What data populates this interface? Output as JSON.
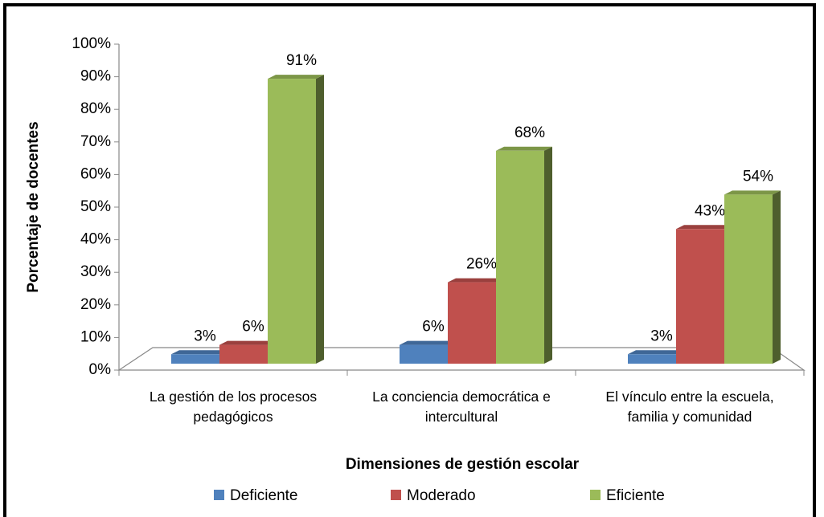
{
  "chart_data": {
    "type": "bar3d",
    "categories": [
      "La gestión de los procesos pedagógicos",
      "La conciencia democrática e intercultural",
      "El vínculo entre la escuela, familia y comunidad"
    ],
    "series": [
      {
        "name": "Deficiente",
        "color": "#4f81bd",
        "values": [
          3,
          6,
          3
        ],
        "value_labels": [
          "3%",
          "6%",
          "3%"
        ]
      },
      {
        "name": "Moderado",
        "color": "#c0504d",
        "values": [
          6,
          26,
          43
        ],
        "value_labels": [
          "6%",
          "26%",
          "43%"
        ]
      },
      {
        "name": "Eficiente",
        "color": "#9bbb59",
        "values": [
          91,
          68,
          54
        ],
        "value_labels": [
          "91%",
          "68%",
          "54%"
        ]
      }
    ],
    "ylim": [
      0,
      100
    ],
    "yticks": [
      {
        "value": 0,
        "label": "0%"
      },
      {
        "value": 10,
        "label": "10%"
      },
      {
        "value": 20,
        "label": "20%"
      },
      {
        "value": 30,
        "label": "30%"
      },
      {
        "value": 40,
        "label": "40%"
      },
      {
        "value": 50,
        "label": "50%"
      },
      {
        "value": 60,
        "label": "60%"
      },
      {
        "value": 70,
        "label": "70%"
      },
      {
        "value": 80,
        "label": "80%"
      },
      {
        "value": 90,
        "label": "90%"
      },
      {
        "value": 100,
        "label": "100%"
      }
    ],
    "y_label": "Porcentaje de docentes",
    "x_label": "Dimensiones de gestión escolar",
    "legend": "bottom"
  }
}
